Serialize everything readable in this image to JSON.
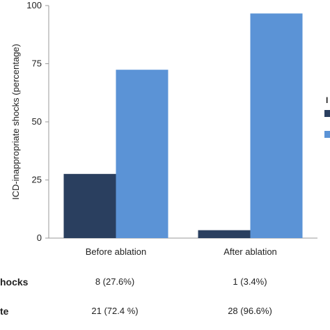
{
  "chart_data": {
    "type": "bar",
    "categories": [
      "Before ablation",
      "After ablation"
    ],
    "series": [
      {
        "values": [
          27.6,
          3.4
        ],
        "color": "#2a3f5f"
      },
      {
        "values": [
          72.4,
          96.6
        ],
        "color": "#5b93d6"
      }
    ],
    "ylabel": "ICD-inappropriate shocks (percentage)",
    "ylim": [
      0,
      100
    ],
    "yticks": [
      0,
      25,
      50,
      75,
      100
    ],
    "grid": false,
    "legend": "right"
  },
  "legend": {
    "entries": [
      {
        "text": "I",
        "color": "#2a3f5f"
      },
      {
        "text": "",
        "color": "#5b93d6"
      }
    ]
  },
  "table": {
    "rows": [
      {
        "label": "hocks",
        "cells": [
          "8 (27.6%)",
          "1 (3.4%)"
        ]
      },
      {
        "label": "te",
        "cells": [
          "21 (72.4 %)",
          "28 (96.6%)"
        ]
      }
    ]
  }
}
